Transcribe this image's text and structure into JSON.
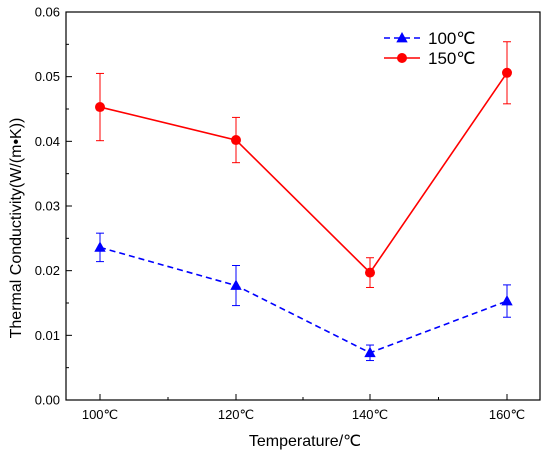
{
  "chart_data": {
    "type": "line",
    "title": "",
    "xlabel": "Temperature/℃",
    "ylabel": "Thermal Conductivity(W/(m•K))",
    "categories": [
      "100℃",
      "120℃",
      "140℃",
      "160℃"
    ],
    "ylim": [
      0,
      0.06
    ],
    "yticks": [
      "0.00",
      "0.01",
      "0.02",
      "0.03",
      "0.04",
      "0.05",
      "0.06"
    ],
    "grid": false,
    "legend_position": "top-right",
    "series": [
      {
        "name": "100℃",
        "values": [
          0.0236,
          0.0177,
          0.0073,
          0.0153
        ],
        "errors": [
          0.0022,
          0.0031,
          0.0012,
          0.0025
        ],
        "color": "#0000ff",
        "marker": "triangle",
        "line_style": "dashed"
      },
      {
        "name": "150℃",
        "values": [
          0.0453,
          0.0402,
          0.0197,
          0.0506
        ],
        "errors": [
          0.0052,
          0.0035,
          0.0023,
          0.0048
        ],
        "color": "#ff0000",
        "marker": "circle",
        "line_style": "solid"
      }
    ]
  }
}
